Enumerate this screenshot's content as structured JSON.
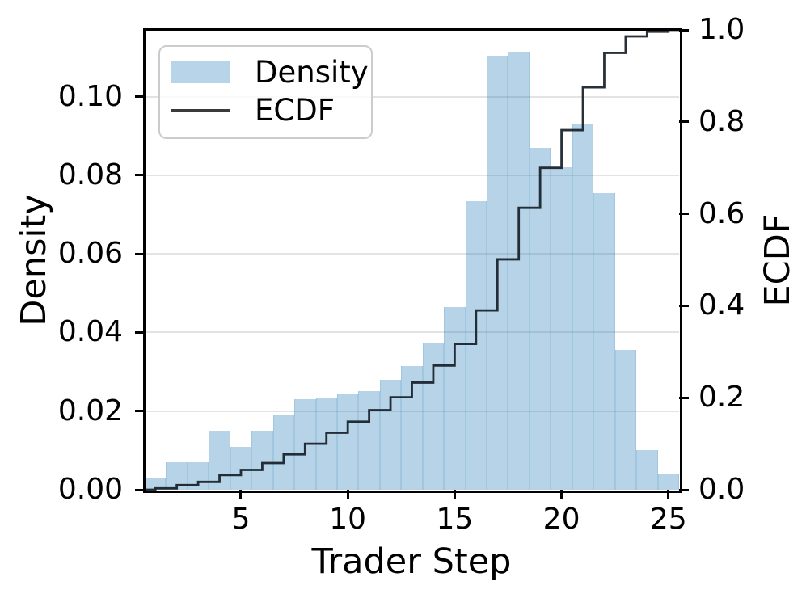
{
  "chart_data": {
    "type": "bar",
    "subtype": "histogram-with-ecdf-line",
    "title": "",
    "xlabel": "Trader Step",
    "ylabel_left": "Density",
    "ylabel_right": "ECDF",
    "x_range": [
      0.5,
      25.5
    ],
    "ylim_left": [
      0,
      0.117
    ],
    "ylim_right": [
      0,
      1.0
    ],
    "grid": "horizontal",
    "x_ticks": [
      5,
      10,
      15,
      20,
      25
    ],
    "y_ticks_left": [
      "0.00",
      "0.02",
      "0.04",
      "0.06",
      "0.08",
      "0.10"
    ],
    "y_ticks_right": [
      "0.0",
      "0.2",
      "0.4",
      "0.6",
      "0.8",
      "1.0"
    ],
    "bin_centers": [
      1,
      2,
      3,
      4,
      5,
      6,
      7,
      8,
      9,
      10,
      11,
      12,
      13,
      14,
      15,
      16,
      17,
      18,
      19,
      20,
      21,
      22,
      23,
      24,
      25
    ],
    "series": [
      {
        "name": "Density",
        "values": [
          0.003,
          0.007,
          0.007,
          0.015,
          0.011,
          0.015,
          0.019,
          0.023,
          0.0235,
          0.0245,
          0.025,
          0.028,
          0.0315,
          0.0375,
          0.0465,
          0.0735,
          0.1105,
          0.1115,
          0.087,
          0.082,
          0.093,
          0.0755,
          0.0355,
          0.01,
          0.004
        ]
      },
      {
        "name": "ECDF",
        "values": [
          0.003,
          0.01,
          0.017,
          0.032,
          0.043,
          0.058,
          0.077,
          0.1,
          0.124,
          0.148,
          0.173,
          0.201,
          0.233,
          0.27,
          0.317,
          0.39,
          0.501,
          0.613,
          0.7,
          0.782,
          0.875,
          0.95,
          0.986,
          0.996,
          1.0
        ]
      }
    ],
    "legend": {
      "position": "upper-left",
      "entries": [
        {
          "label": "Density",
          "type": "patch",
          "color": "#b8d4e9"
        },
        {
          "label": "ECDF",
          "type": "line",
          "color": "#3a3a3a"
        }
      ]
    },
    "colors": {
      "bar_fill": "#b8d4e9",
      "ecdf_line": "#242830",
      "grid": "#e3e3e3",
      "spine": "#000000",
      "background": "#ffffff"
    }
  }
}
